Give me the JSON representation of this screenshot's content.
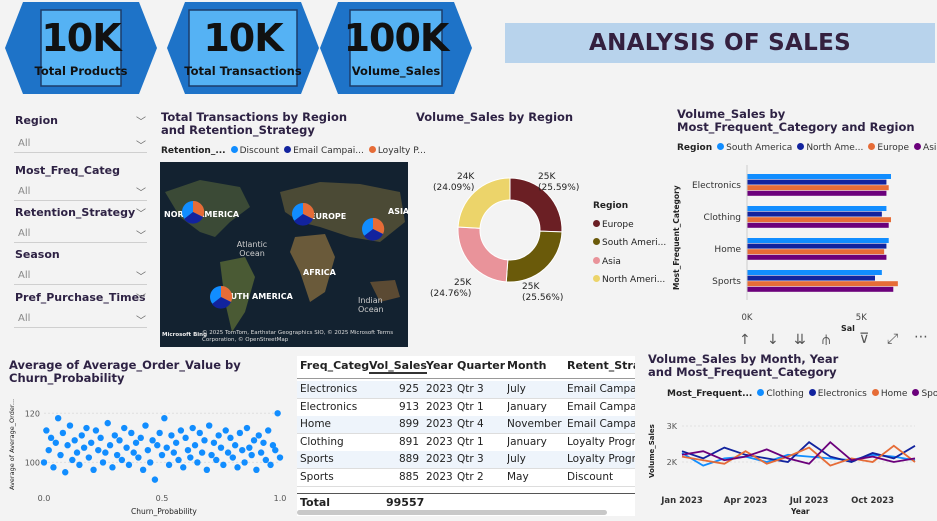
{
  "kpis": [
    {
      "value": "10K",
      "label": "Total Products"
    },
    {
      "value": "10K",
      "label": "Total Transactions"
    },
    {
      "value": "100K",
      "label": "Volume_Sales"
    }
  ],
  "page_title": "ANALYSIS OF SALES",
  "slicers": [
    {
      "label": "Region",
      "value": "All"
    },
    {
      "label": "Most_Freq_Categ",
      "value": "All"
    },
    {
      "label": "Retention_Strategy",
      "value": "All"
    },
    {
      "label": "Season",
      "value": "All"
    },
    {
      "label": "Pref_Purchase_Times",
      "value": "All"
    }
  ],
  "map_visual": {
    "title": "Total Transactions by Region and Retention_Strategy",
    "legend_title": "Retention_...",
    "legend": [
      {
        "name": "Discount",
        "color": "#118dff"
      },
      {
        "name": "Email Campai...",
        "color": "#12239e"
      },
      {
        "name": "Loyalty P...",
        "color": "#e66c37"
      }
    ],
    "labels": [
      "NORTH AMERICA",
      "EUROPE",
      "ASIA",
      "SOUTH AMERICA",
      "AFRICA",
      "Atlantic Ocean",
      "Indian Ocean"
    ],
    "credit_logo": "Microsoft Bing",
    "credit": "© 2025 TomTom, Earthstar Geographics SIO, © 2025 Microsoft Terms Corporation, © OpenStreetMap"
  },
  "donut": {
    "title": "Volume_Sales by Region",
    "legend_title": "Region",
    "labels": [
      {
        "value": "25K",
        "pct": "(25.59%)"
      },
      {
        "value": "25K",
        "pct": "(25.56%)"
      },
      {
        "value": "25K",
        "pct": "(24.76%)"
      },
      {
        "value": "24K",
        "pct": "(24.09%)"
      }
    ],
    "legend": [
      {
        "name": "Europe",
        "color": "#6b1f24"
      },
      {
        "name": "South Ameri...",
        "color": "#6a5a0a"
      },
      {
        "name": "Asia",
        "color": "#e9939a"
      },
      {
        "name": "North Ameri...",
        "color": "#ecd46a"
      }
    ]
  },
  "hbar": {
    "title": "Volume_Sales by Most_Frequent_Category and Region",
    "legend_title": "Region",
    "legend": [
      {
        "name": "South America",
        "color": "#118dff"
      },
      {
        "name": "North Ame...",
        "color": "#12239e"
      },
      {
        "name": "Europe",
        "color": "#e66c37"
      },
      {
        "name": "Asia",
        "color": "#6b007b"
      }
    ],
    "ylabel": "Most_Frequent_Category",
    "xlabel": "Sal",
    "ticks": [
      "0K",
      "5K"
    ],
    "toolbar_icons": [
      "arrow-up-icon",
      "arrow-down-icon",
      "double-arrow-down-icon",
      "expand-hierarchy-icon",
      "filter-icon",
      "focus-mode-icon",
      "more-options-icon"
    ]
  },
  "scatter": {
    "title": "Average of Average_Order_Value by Churn_Probability",
    "ylabel": "Average of Average_Order...",
    "xlabel": "Churn_Probability",
    "yticks": [
      "120",
      "100"
    ],
    "xticks": [
      "0.0",
      "0.5",
      "1.0"
    ]
  },
  "table": {
    "columns": [
      "Freq_Categ",
      "Vol_Sales",
      "Year",
      "Quarter",
      "Month",
      "Retent_Strat"
    ],
    "rows": [
      [
        "Electronics",
        "925",
        "2023",
        "Qtr 3",
        "July",
        "Email Campaig"
      ],
      [
        "Electronics",
        "913",
        "2023",
        "Qtr 1",
        "January",
        "Email Campaig"
      ],
      [
        "Home",
        "899",
        "2023",
        "Qtr 4",
        "November",
        "Email Campaig"
      ],
      [
        "Clothing",
        "891",
        "2023",
        "Qtr 1",
        "January",
        "Loyalty Progra"
      ],
      [
        "Sports",
        "889",
        "2023",
        "Qtr 3",
        "July",
        "Loyalty Progra"
      ],
      [
        "Sports",
        "885",
        "2023",
        "Qtr 2",
        "May",
        "Discount"
      ]
    ],
    "total_label": "Total",
    "total_value": "99557"
  },
  "line": {
    "title": "Volume_Sales by Month, Year and Most_Frequent_Category",
    "legend_title": "Most_Frequent...",
    "legend": [
      {
        "name": "Clothing",
        "color": "#118dff"
      },
      {
        "name": "Electronics",
        "color": "#12239e"
      },
      {
        "name": "Home",
        "color": "#e66c37"
      },
      {
        "name": "Sports",
        "color": "#6b007b"
      }
    ],
    "ylabel": "Volume_Sales",
    "xlabel": "Year",
    "yticks": [
      "3K",
      "2K"
    ],
    "xticks": [
      "Jan 2023",
      "Apr 2023",
      "Jul 2023",
      "Oct 2023"
    ]
  },
  "chart_data": [
    {
      "type": "pie",
      "title": "Volume_Sales by Region",
      "categories": [
        "Europe",
        "South America",
        "Asia",
        "North America"
      ],
      "values": [
        25590,
        25560,
        24760,
        24090
      ],
      "percent": [
        25.59,
        25.56,
        24.76,
        24.09
      ]
    },
    {
      "type": "bar",
      "orientation": "horizontal",
      "title": "Volume_Sales by Most_Frequent_Category and Region",
      "categories": [
        "Electronics",
        "Clothing",
        "Home",
        "Sports"
      ],
      "series": [
        {
          "name": "South America",
          "values": [
            6300,
            6100,
            6200,
            5900
          ]
        },
        {
          "name": "North America",
          "values": [
            6100,
            5900,
            6100,
            5600
          ]
        },
        {
          "name": "Europe",
          "values": [
            6200,
            6300,
            6000,
            6600
          ]
        },
        {
          "name": "Asia",
          "values": [
            6100,
            6200,
            6100,
            6400
          ]
        }
      ],
      "xlim": [
        0,
        7000
      ]
    },
    {
      "type": "scatter",
      "title": "Average of Average_Order_Value by Churn_Probability",
      "xlim": [
        0,
        1
      ],
      "ylim": [
        90,
        125
      ],
      "points": [
        [
          0.0,
          100
        ],
        [
          0.01,
          113
        ],
        [
          0.02,
          105
        ],
        [
          0.03,
          110
        ],
        [
          0.04,
          98
        ],
        [
          0.05,
          108
        ],
        [
          0.06,
          118
        ],
        [
          0.07,
          103
        ],
        [
          0.08,
          112
        ],
        [
          0.09,
          96
        ],
        [
          0.1,
          107
        ],
        [
          0.11,
          115
        ],
        [
          0.12,
          101
        ],
        [
          0.13,
          109
        ],
        [
          0.14,
          104
        ],
        [
          0.15,
          99
        ],
        [
          0.16,
          111
        ],
        [
          0.17,
          106
        ],
        [
          0.18,
          114
        ],
        [
          0.19,
          102
        ],
        [
          0.2,
          108
        ],
        [
          0.21,
          97
        ],
        [
          0.22,
          113
        ],
        [
          0.23,
          105
        ],
        [
          0.24,
          110
        ],
        [
          0.25,
          100
        ],
        [
          0.26,
          104
        ],
        [
          0.27,
          116
        ],
        [
          0.28,
          107
        ],
        [
          0.29,
          98
        ],
        [
          0.3,
          111
        ],
        [
          0.31,
          103
        ],
        [
          0.32,
          109
        ],
        [
          0.33,
          101
        ],
        [
          0.34,
          114
        ],
        [
          0.35,
          106
        ],
        [
          0.36,
          99
        ],
        [
          0.37,
          112
        ],
        [
          0.38,
          104
        ],
        [
          0.39,
          108
        ],
        [
          0.4,
          102
        ],
        [
          0.41,
          110
        ],
        [
          0.42,
          97
        ],
        [
          0.43,
          115
        ],
        [
          0.44,
          105
        ],
        [
          0.45,
          100
        ],
        [
          0.46,
          109
        ],
        [
          0.47,
          93
        ],
        [
          0.48,
          107
        ],
        [
          0.49,
          112
        ],
        [
          0.5,
          103
        ],
        [
          0.51,
          118
        ],
        [
          0.52,
          106
        ],
        [
          0.53,
          99
        ],
        [
          0.54,
          111
        ],
        [
          0.55,
          104
        ],
        [
          0.56,
          108
        ],
        [
          0.57,
          101
        ],
        [
          0.58,
          113
        ],
        [
          0.59,
          98
        ],
        [
          0.6,
          110
        ],
        [
          0.61,
          105
        ],
        [
          0.62,
          102
        ],
        [
          0.63,
          114
        ],
        [
          0.64,
          107
        ],
        [
          0.65,
          100
        ],
        [
          0.66,
          112
        ],
        [
          0.67,
          104
        ],
        [
          0.68,
          109
        ],
        [
          0.69,
          97
        ],
        [
          0.7,
          115
        ],
        [
          0.71,
          103
        ],
        [
          0.72,
          108
        ],
        [
          0.73,
          101
        ],
        [
          0.74,
          111
        ],
        [
          0.75,
          106
        ],
        [
          0.76,
          99
        ],
        [
          0.77,
          113
        ],
        [
          0.78,
          104
        ],
        [
          0.79,
          110
        ],
        [
          0.8,
          102
        ],
        [
          0.81,
          107
        ],
        [
          0.82,
          98
        ],
        [
          0.83,
          112
        ],
        [
          0.84,
          105
        ],
        [
          0.85,
          100
        ],
        [
          0.86,
          114
        ],
        [
          0.87,
          106
        ],
        [
          0.88,
          103
        ],
        [
          0.89,
          109
        ],
        [
          0.9,
          97
        ],
        [
          0.91,
          111
        ],
        [
          0.92,
          104
        ],
        [
          0.93,
          108
        ],
        [
          0.94,
          101
        ],
        [
          0.95,
          113
        ],
        [
          0.96,
          99
        ],
        [
          0.97,
          107
        ],
        [
          0.98,
          105
        ],
        [
          0.99,
          120
        ],
        [
          1.0,
          102
        ]
      ]
    },
    {
      "type": "line",
      "title": "Volume_Sales by Month, Year and Most_Frequent_Category",
      "x": [
        "Jan 2023",
        "Feb 2023",
        "Mar 2023",
        "Apr 2023",
        "May 2023",
        "Jun 2023",
        "Jul 2023",
        "Aug 2023",
        "Sep 2023",
        "Oct 2023",
        "Nov 2023",
        "Dec 2023"
      ],
      "ylim": [
        1500,
        3500
      ],
      "series": [
        {
          "name": "Clothing",
          "values": [
            2250,
            1900,
            2100,
            2150,
            2000,
            2200,
            2150,
            2100,
            2050,
            2200,
            2150,
            2050
          ]
        },
        {
          "name": "Electronics",
          "values": [
            2300,
            2100,
            2400,
            2200,
            2100,
            2000,
            2550,
            2150,
            2000,
            2250,
            2100,
            2450
          ]
        },
        {
          "name": "Home",
          "values": [
            2150,
            2050,
            1950,
            2300,
            1950,
            2150,
            2400,
            1900,
            2100,
            2000,
            2450,
            2000
          ]
        },
        {
          "name": "Sports",
          "values": [
            2200,
            2300,
            2050,
            2150,
            2350,
            2100,
            1950,
            2550,
            2050,
            2150,
            2000,
            2100
          ]
        }
      ]
    }
  ]
}
